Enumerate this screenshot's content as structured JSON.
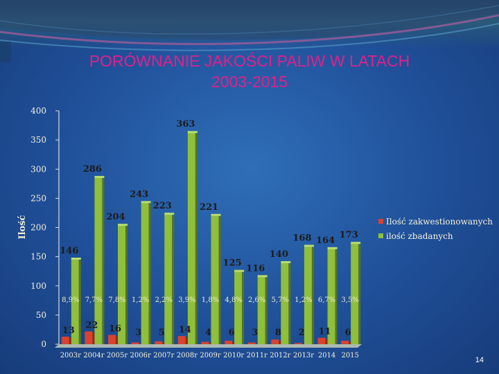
{
  "slide": {
    "title_line1": "PORÓWNANIE JAKOŚCI PALIW W LATACH",
    "title_line2": "2003-2015",
    "page_number": "14",
    "title_color": "#e0208c"
  },
  "chart_data": {
    "type": "bar",
    "title": "",
    "ylabel": "Ilość",
    "ylim": [
      0,
      400
    ],
    "yticks": [
      0,
      50,
      100,
      150,
      200,
      250,
      300,
      350,
      400
    ],
    "grid": false,
    "legend_position": "right",
    "categories": [
      "2003r",
      "2004r",
      "2005r",
      "2006r",
      "2007r",
      "2008r",
      "2009r",
      "2010r",
      "2011r",
      "2012r",
      "2013r",
      "2014",
      "2015"
    ],
    "series": [
      {
        "name": "Ilość zakwestionowanych",
        "color": "#d9432e",
        "values": [
          13,
          22,
          16,
          3,
          5,
          14,
          4,
          6,
          3,
          8,
          2,
          11,
          6
        ]
      },
      {
        "name": "ilość zbadanych",
        "color": "#8fbf3b",
        "values": [
          146,
          286,
          204,
          243,
          223,
          363,
          221,
          125,
          116,
          140,
          168,
          164,
          173
        ]
      }
    ],
    "percent_labels": [
      "8,9%",
      "7,7%",
      "7,8%",
      "1,2%",
      "2,2%",
      "3,9%",
      "1,8%",
      "4,8%",
      "2,6%",
      "5,7%",
      "1,2%",
      "6,7%",
      "3,5%"
    ]
  }
}
